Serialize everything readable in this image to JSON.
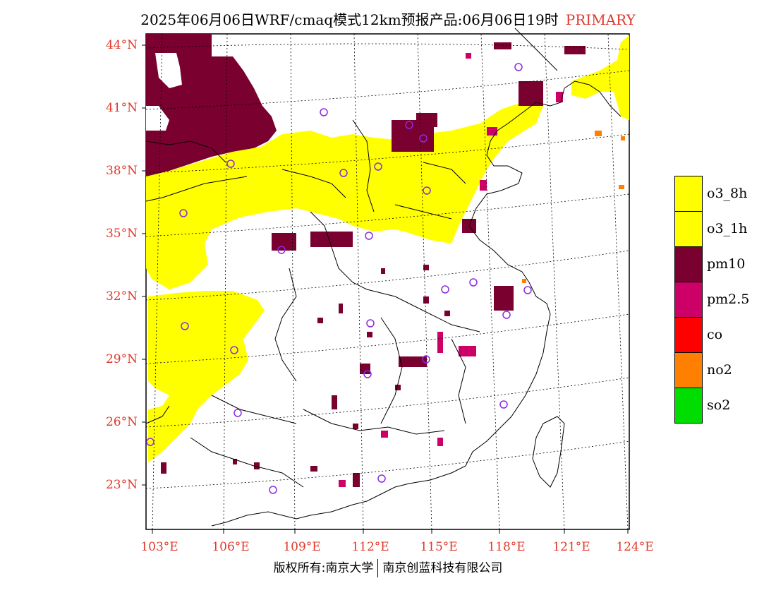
{
  "title": {
    "main": "2025年06月06日WRF/cmaq模式12km预报产品:06月06日19时",
    "tag": "PRIMARY"
  },
  "axes": {
    "lat_labels": [
      "44°N",
      "41°N",
      "38°N",
      "35°N",
      "32°N",
      "29°N",
      "26°N",
      "23°N"
    ],
    "lon_labels": [
      "103°E",
      "106°E",
      "109°E",
      "112°E",
      "115°E",
      "118°E",
      "121°E",
      "124°E"
    ]
  },
  "legend": [
    {
      "label": "o3_8h",
      "color": "#ffff00"
    },
    {
      "label": "o3_1h",
      "color": "#ffff00"
    },
    {
      "label": "pm10",
      "color": "#7a0030"
    },
    {
      "label": "pm2.5",
      "color": "#cc0066"
    },
    {
      "label": "co",
      "color": "#ff0000"
    },
    {
      "label": "no2",
      "color": "#ff7f00"
    },
    {
      "label": "so2",
      "color": "#00dd00"
    }
  ],
  "footer": {
    "left": "版权所有:南京大学",
    "right": "南京创蓝科技有限公司"
  }
}
